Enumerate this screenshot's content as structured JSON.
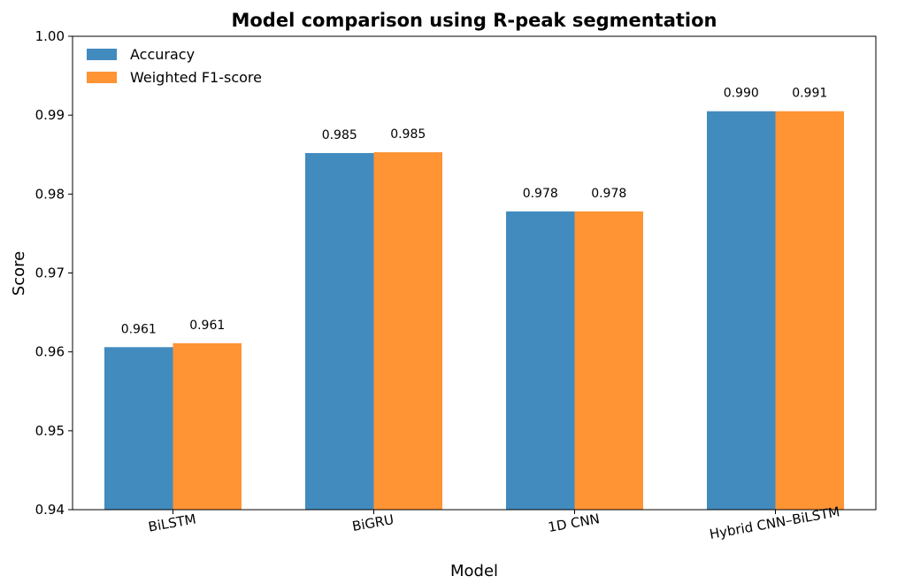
{
  "chart_data": {
    "type": "bar",
    "title": "Model comparison using R-peak segmentation",
    "xlabel": "Model",
    "ylabel": "Score",
    "ylim": [
      0.94,
      1.0
    ],
    "yticks": [
      "0.94",
      "0.95",
      "0.96",
      "0.97",
      "0.98",
      "0.99",
      "1.00"
    ],
    "categories": [
      "BiLSTM",
      "BiGRU",
      "1D CNN",
      "Hybrid CNN–BiLSTM"
    ],
    "series": [
      {
        "name": "Accuracy",
        "color": "#428bbf",
        "values": [
          0.9606,
          0.9852,
          0.9778,
          0.9905
        ],
        "labels": [
          "0.961",
          "0.985",
          "0.978",
          "0.990"
        ]
      },
      {
        "name": "Weighted F1-score",
        "color": "#fe9434",
        "values": [
          0.9611,
          0.9853,
          0.9778,
          0.9905
        ],
        "labels": [
          "0.961",
          "0.985",
          "0.978",
          "0.991"
        ]
      }
    ],
    "legend_position": "upper-left",
    "grid": false
  }
}
